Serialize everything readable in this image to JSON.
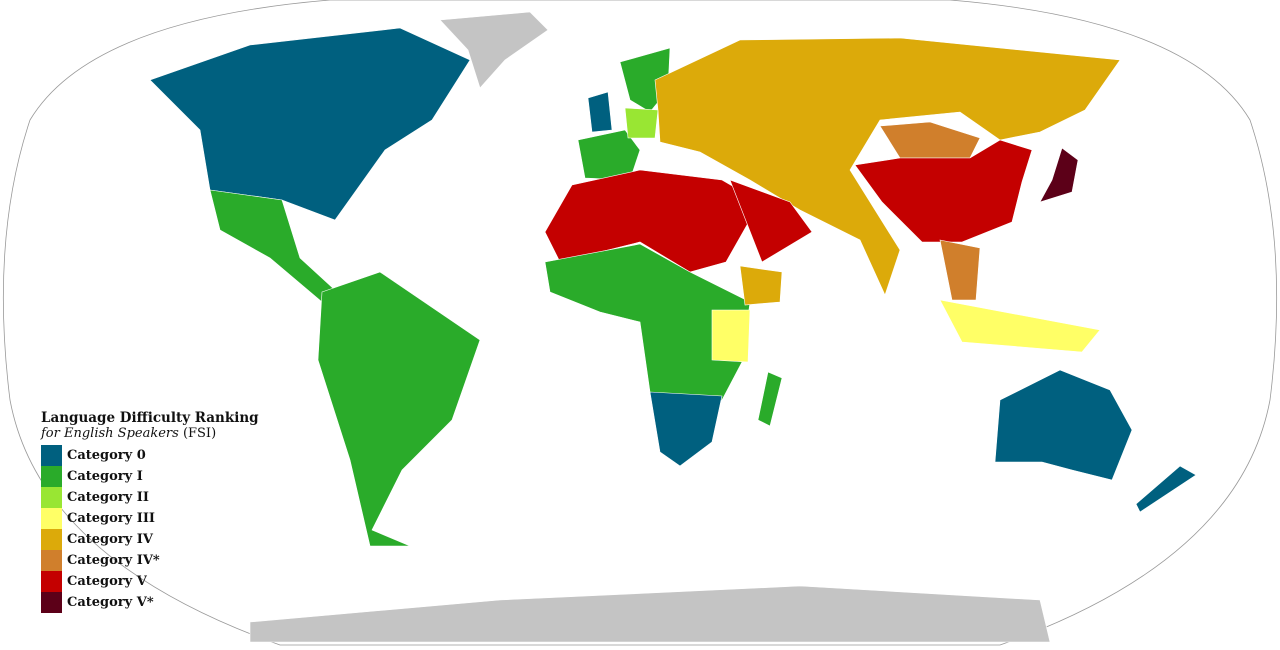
{
  "legend": {
    "title": "Language Difficulty Ranking",
    "subtitle_italic": "for English Speakers",
    "subtitle_suffix": "(FSI)",
    "items": [
      {
        "label": "Category 0",
        "color": "#00607f"
      },
      {
        "label": "Category I",
        "color": "#2aab2a"
      },
      {
        "label": "Category II",
        "color": "#99e633"
      },
      {
        "label": "Category III",
        "color": "#ffff66"
      },
      {
        "label": "Category IV",
        "color": "#dcaa0a"
      },
      {
        "label": "Category IV*",
        "color": "#d07f2c"
      },
      {
        "label": "Category V",
        "color": "#c40000"
      },
      {
        "label": "Category V*",
        "color": "#5c0018"
      }
    ]
  },
  "colors": {
    "no_data": "#c4c4c4",
    "ocean": "#ffffff",
    "outline": "#999999"
  }
}
